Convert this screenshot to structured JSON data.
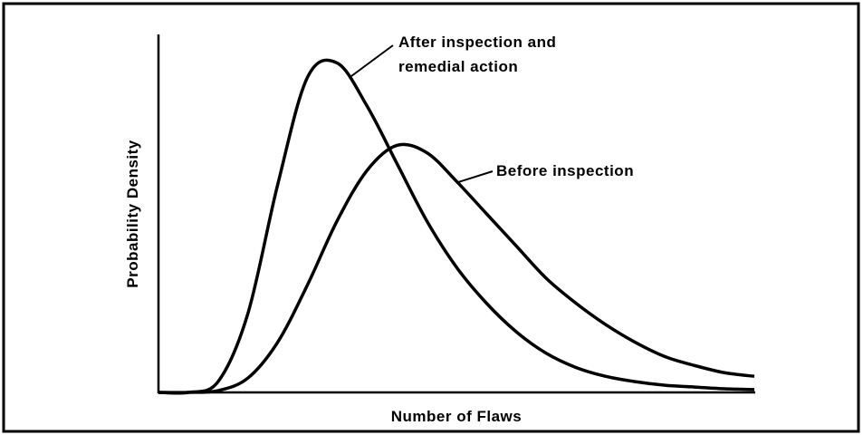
{
  "chart_data": {
    "type": "line",
    "x_label": "Number of Flaws",
    "y_label": "Probability Density",
    "x": [
      0,
      5,
      10,
      15,
      20,
      25,
      30,
      35,
      40,
      45,
      50,
      55,
      60,
      65,
      70,
      75,
      80,
      85,
      90,
      95,
      100
    ],
    "xlim": [
      0,
      100
    ],
    "ylim": [
      0,
      100
    ],
    "series": [
      {
        "name": "After inspection and remedial action",
        "color": "#000000",
        "values": [
          0,
          0,
          3,
          22,
          58,
          88,
          92,
          80,
          64,
          48,
          35,
          25,
          17,
          11,
          7,
          4.5,
          3,
          2,
          1.5,
          1,
          0.8
        ]
      },
      {
        "name": "Before inspection",
        "color": "#000000",
        "values": [
          0,
          0,
          0.5,
          4,
          14,
          30,
          48,
          62,
          69,
          67,
          59,
          50,
          41,
          32,
          25,
          19,
          14,
          10,
          7.5,
          5.5,
          4.5
        ]
      }
    ]
  }
}
